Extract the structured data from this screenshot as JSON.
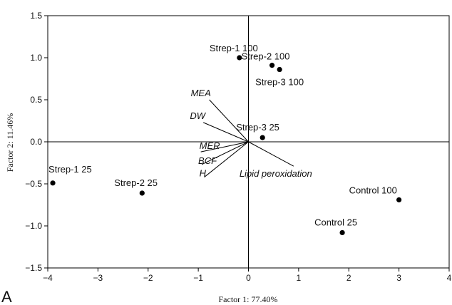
{
  "panel_label": "A",
  "chart_data": {
    "type": "scatter",
    "title": "",
    "xlabel": "Factor 1: 77.40%",
    "ylabel": "Factor 2: 11.46%",
    "xlim": [
      -4,
      4
    ],
    "ylim": [
      -1.5,
      1.5
    ],
    "x_ticks": [
      -4,
      -3,
      -2,
      -1,
      0,
      1,
      2,
      3,
      4
    ],
    "y_ticks": [
      -1.5,
      -1.0,
      -0.5,
      0.0,
      0.5,
      1.0,
      1.5
    ],
    "x_tick_labels": [
      "−4",
      "−3",
      "−2",
      "−1",
      "0",
      "1",
      "2",
      "3",
      "4"
    ],
    "y_tick_labels": [
      "−1.5",
      "−1.0",
      "−0.5",
      "0.0",
      "0.5",
      "1.0",
      "1.5"
    ],
    "grid": false,
    "points": [
      {
        "label": "Strep-1 100",
        "x": -0.18,
        "y": 1.0
      },
      {
        "label": "Strep-2 100",
        "x": 0.47,
        "y": 0.91
      },
      {
        "label": "Strep-3 100",
        "x": 0.62,
        "y": 0.86
      },
      {
        "label": "Strep-3 25",
        "x": 0.28,
        "y": 0.05
      },
      {
        "label": "Strep-1 25",
        "x": -3.9,
        "y": -0.49
      },
      {
        "label": "Strep-2 25",
        "x": -2.12,
        "y": -0.61
      },
      {
        "label": "Control 100",
        "x": 3.0,
        "y": -0.69
      },
      {
        "label": "Control 25",
        "x": 1.87,
        "y": -1.08
      }
    ],
    "vectors": [
      {
        "label": "MEA",
        "x": -0.78,
        "y": 0.5
      },
      {
        "label": "DW",
        "x": -0.9,
        "y": 0.23
      },
      {
        "label": "MER",
        "x": -0.95,
        "y": -0.12
      },
      {
        "label": "BCF",
        "x": -0.93,
        "y": -0.27
      },
      {
        "label": "H",
        "x": -0.88,
        "y": -0.42
      },
      {
        "label": "Lipid peroxidation",
        "x": 0.9,
        "y": -0.29
      }
    ]
  }
}
